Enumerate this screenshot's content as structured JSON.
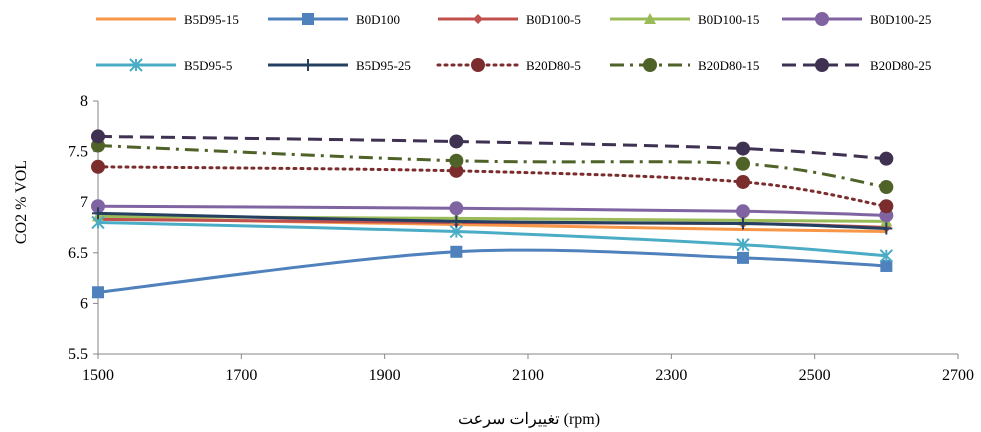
{
  "chart_data": {
    "type": "line",
    "title": "",
    "xlabel": "تغییرات سرعت (rpm)",
    "ylabel": "CO2 % VOL",
    "xlim": [
      1500,
      2700
    ],
    "ylim": [
      5.5,
      8
    ],
    "x_ticks": [
      1500,
      1700,
      1900,
      2100,
      2300,
      2500,
      2700
    ],
    "y_ticks": [
      5.5,
      6,
      6.5,
      7,
      7.5,
      8
    ],
    "grid": false,
    "legend_position": "top",
    "x": [
      1500,
      2000,
      2400,
      2600
    ],
    "series": [
      {
        "name": "B5D95-15",
        "values": [
          6.84,
          6.78,
          6.73,
          6.71
        ],
        "color": "#f79646",
        "marker": "none",
        "dash": "solid",
        "width": 3,
        "smooth": true
      },
      {
        "name": "B0D100",
        "values": [
          6.11,
          6.51,
          6.45,
          6.37
        ],
        "color": "#4f81bd",
        "marker": "square",
        "dash": "solid",
        "width": 3,
        "smooth": true
      },
      {
        "name": "B0D100-5",
        "values": [
          6.83,
          6.8,
          6.79,
          6.75
        ],
        "color": "#c0504d",
        "marker": "diamond",
        "dash": "solid",
        "width": 3,
        "smooth": true
      },
      {
        "name": "B0D100-15",
        "values": [
          6.86,
          6.84,
          6.82,
          6.81
        ],
        "color": "#9bbb59",
        "marker": "triangle",
        "dash": "solid",
        "width": 3,
        "smooth": true
      },
      {
        "name": "B0D100-25",
        "values": [
          6.96,
          6.94,
          6.91,
          6.87
        ],
        "color": "#8064a2",
        "marker": "circle",
        "dash": "solid",
        "width": 3,
        "smooth": true
      },
      {
        "name": "B5D95-5",
        "values": [
          6.8,
          6.71,
          6.58,
          6.47
        ],
        "color": "#4bacc6",
        "marker": "star",
        "dash": "solid",
        "width": 3,
        "smooth": true
      },
      {
        "name": "B5D95-25",
        "values": [
          6.89,
          6.81,
          6.79,
          6.74
        ],
        "color": "#243f60",
        "marker": "plus",
        "dash": "solid",
        "width": 3,
        "smooth": true
      },
      {
        "name": "B20D80-5",
        "values": [
          7.35,
          7.31,
          7.2,
          6.96
        ],
        "color": "#7b2c2c",
        "marker": "circle",
        "dash": "dotted",
        "width": 3,
        "smooth": true
      },
      {
        "name": "B20D80-15",
        "values": [
          7.56,
          7.41,
          7.38,
          7.15
        ],
        "color": "#4f6228",
        "marker": "circle",
        "dash": "dashdot",
        "width": 3,
        "smooth": true
      },
      {
        "name": "B20D80-25",
        "values": [
          7.65,
          7.6,
          7.53,
          7.43
        ],
        "color": "#3f3151",
        "marker": "circle",
        "dash": "dashed",
        "width": 3,
        "smooth": true
      }
    ]
  }
}
